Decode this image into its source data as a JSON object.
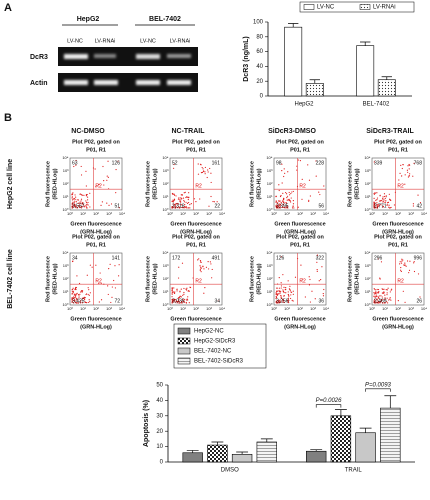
{
  "panel_a": {
    "label": "A",
    "cell_lines": [
      "HepG2",
      "BEL-7402"
    ],
    "lanes": [
      "LV-NC",
      "LV-RNAi",
      "LV-NC",
      "LV-RNAi"
    ],
    "rows": [
      "DcR3",
      "Actin"
    ]
  },
  "panel_b": {
    "label": "B",
    "columns": [
      "NC-DMSO",
      "NC-TRAIL",
      "SiDcR3-DMSO",
      "SiDcR3-TRAIL"
    ],
    "plot_title": [
      "Plot P02, gated on",
      "P01, R1"
    ],
    "y_axis_label": [
      "Red fluorescence",
      "(RED-HLog)"
    ],
    "x_axis_label": [
      "Green fluorescence",
      "(GRN-HLog)"
    ],
    "axis_ticks": [
      "10⁰",
      "10¹",
      "10²",
      "10³",
      "10⁴"
    ],
    "gate": "R2",
    "rows": [
      {
        "name": "HepG2 cell line",
        "plots": [
          {
            "quadrants": [
              "63",
              "126",
              "3,557",
              "51"
            ]
          },
          {
            "quadrants": [
              "52",
              "161",
              "3,316",
              "22"
            ]
          },
          {
            "quadrants": [
              "98",
              "228",
              "3,395",
              "56"
            ]
          },
          {
            "quadrants": [
              "339",
              "768",
              "2,771",
              "42"
            ]
          }
        ]
      },
      {
        "name": "BEL-7402 cell line",
        "plots": [
          {
            "quadrants": [
              "34",
              "141",
              "3,425",
              "72"
            ]
          },
          {
            "quadrants": [
              "172",
              "491",
              "3,035",
              "34"
            ]
          },
          {
            "quadrants": [
              "126",
              "322",
              "3,256",
              "36"
            ]
          },
          {
            "quadrants": [
              "296",
              "996",
              "2,469",
              "26"
            ]
          }
        ]
      }
    ]
  },
  "chart_data": [
    {
      "type": "bar",
      "y_label": "DcR3 (ng/mL)",
      "categories": [
        "HepG2",
        "BEL-7402"
      ],
      "series": [
        {
          "name": "LV-NC",
          "color": "#ffffff",
          "pattern": "none",
          "values": [
            93,
            68
          ],
          "errors": [
            5,
            5
          ]
        },
        {
          "name": "LV-RNAi",
          "color": "#ffffff",
          "pattern": "dots",
          "values": [
            17,
            22
          ],
          "errors": [
            5,
            4
          ]
        }
      ],
      "ylim": [
        0,
        100
      ],
      "yticks": [
        0,
        20,
        40,
        60,
        80,
        100
      ],
      "legend": "top"
    },
    {
      "type": "bar",
      "y_label": "Apoptosis (%)",
      "categories": [
        "DMSO",
        "TRAIL"
      ],
      "series": [
        {
          "name": "HepG2-NC",
          "color": "#808080",
          "pattern": "none",
          "values": [
            6,
            7
          ],
          "errors": [
            1.5,
            1
          ]
        },
        {
          "name": "HepG2-SiDcR3",
          "color": "#ffffff",
          "pattern": "checker",
          "values": [
            11,
            30
          ],
          "errors": [
            2,
            4
          ]
        },
        {
          "name": "BEL-7402-NC",
          "color": "#c8c8c8",
          "pattern": "none",
          "values": [
            5,
            19
          ],
          "errors": [
            1.5,
            3
          ]
        },
        {
          "name": "BEL-7402-SiDcR3",
          "color": "#e8e8e8",
          "pattern": "lines",
          "values": [
            13,
            35
          ],
          "errors": [
            2,
            8
          ]
        }
      ],
      "ylim": [
        0,
        50
      ],
      "yticks": [
        0,
        10,
        20,
        30,
        40,
        50
      ],
      "legend": "upper left",
      "annotations": [
        {
          "text": "P=0.0026",
          "category": 1,
          "between": [
            0,
            1
          ]
        },
        {
          "text": "P=0.0093",
          "category": 1,
          "between": [
            2,
            3
          ]
        }
      ]
    }
  ]
}
